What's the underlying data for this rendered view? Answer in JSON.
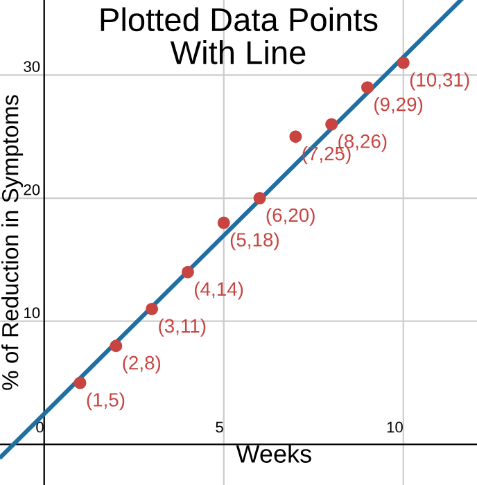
{
  "chart_data": {
    "type": "scatter",
    "title": "Plotted Data Points\nWith Line",
    "xlabel": "Weeks",
    "ylabel": "% of Reduction in Symptoms",
    "x": [
      1,
      2,
      3,
      4,
      5,
      6,
      7,
      8,
      9,
      10
    ],
    "series": [
      {
        "color": "#c74440",
        "marker": "circle",
        "values": [
          5,
          8,
          11,
          14,
          18,
          20,
          25,
          26,
          29,
          31
        ]
      },
      {
        "type": "line",
        "color": "#1f6fa3",
        "x": [
          -1.2,
          11.6
        ],
        "values": [
          -1.0,
          36.1
        ]
      }
    ],
    "xlim": [
      -1.23,
      12.05
    ],
    "ylim": [
      -3.3,
      36.1
    ],
    "xticks": [
      0,
      5,
      10
    ],
    "yticks": [
      10,
      20,
      30
    ],
    "annotations": [
      {
        "text": "(1,5)",
        "x": 1,
        "y": 5
      },
      {
        "text": "(2,8)",
        "x": 2,
        "y": 8
      },
      {
        "text": "(3,11)",
        "x": 3,
        "y": 11
      },
      {
        "text": "(4,14)",
        "x": 4,
        "y": 14
      },
      {
        "text": "(5,18)",
        "x": 5,
        "y": 18
      },
      {
        "text": "(6,20)",
        "x": 6,
        "y": 20
      },
      {
        "text": "(7,25)",
        "x": 7,
        "y": 25
      },
      {
        "text": "(8,26)",
        "x": 8,
        "y": 26
      },
      {
        "text": "(9,29)",
        "x": 9,
        "y": 29
      },
      {
        "text": "(10,31)",
        "x": 10,
        "y": 31
      }
    ],
    "grid": true
  }
}
